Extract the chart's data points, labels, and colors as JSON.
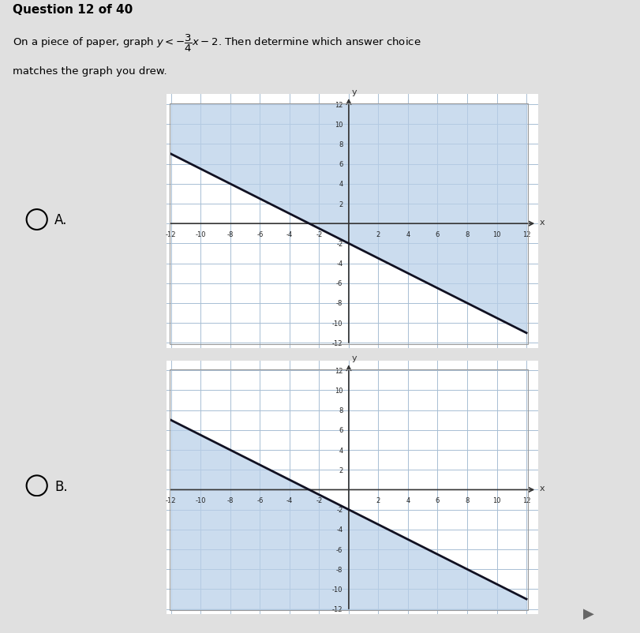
{
  "background_color": "#e0e0e0",
  "grid_color": "#a8bfd4",
  "shade_color": "#b8cfe8",
  "shade_alpha": 0.72,
  "line_color": "#111122",
  "axis_color": "#333333",
  "tick_color": "#222222",
  "slope": -0.75,
  "intercept": -2,
  "xlim": [
    -12,
    12
  ],
  "ylim": [
    -12,
    12
  ],
  "xticks": [
    -12,
    -10,
    -8,
    -6,
    -4,
    -2,
    2,
    4,
    6,
    8,
    10,
    12
  ],
  "yticks": [
    -12,
    -10,
    -8,
    -6,
    -4,
    -2,
    2,
    4,
    6,
    8,
    10,
    12
  ],
  "label_A": "A.",
  "label_B": "B.",
  "graph_A_shade": "above_line",
  "graph_B_shade": "below_line",
  "question_num": "Question 12 of 40",
  "question_body1": "On a piece of paper, graph $y < -\\dfrac{3}{4}x-2$. Then determine which answer choice",
  "question_body2": "matches the graph you drew."
}
